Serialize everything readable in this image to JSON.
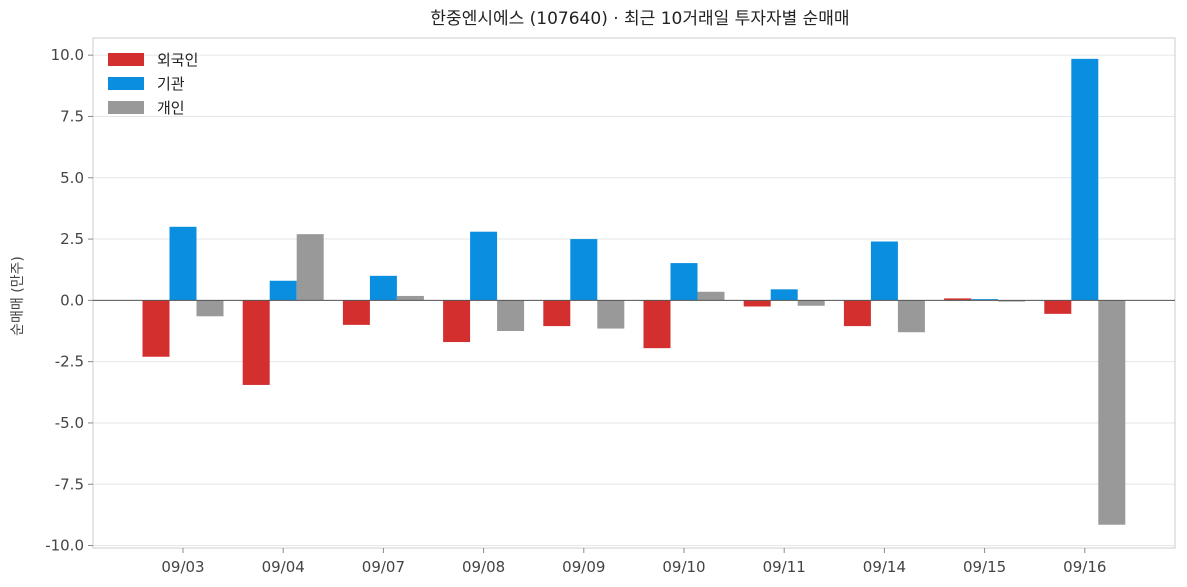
{
  "chart_data": {
    "type": "bar",
    "title": "한중엔시에스 (107640) · 최근 10거래일 투자자별 순매매",
    "xlabel": "",
    "ylabel": "순매매 (만주)",
    "categories": [
      "09/03",
      "09/04",
      "09/07",
      "09/08",
      "09/09",
      "09/10",
      "09/11",
      "09/14",
      "09/15",
      "09/16"
    ],
    "series": [
      {
        "name": "외국인",
        "color": "#d32f2f",
        "values": [
          -2.3,
          -3.45,
          -1.0,
          -1.7,
          -1.05,
          -1.95,
          -0.25,
          -1.05,
          0.08,
          -0.55
        ]
      },
      {
        "name": "기관",
        "color": "#0a8fe0",
        "values": [
          3.0,
          0.8,
          1.0,
          2.8,
          2.5,
          1.52,
          0.45,
          2.4,
          0.05,
          9.85
        ]
      },
      {
        "name": "개인",
        "color": "#999999",
        "values": [
          -0.65,
          2.7,
          0.18,
          -1.25,
          -1.15,
          0.35,
          -0.22,
          -1.3,
          -0.05,
          -9.15
        ]
      }
    ],
    "ylim": [
      -10.1,
      10.7
    ],
    "yticks": [
      "10.0",
      "7.5",
      "5.0",
      "2.5",
      "0.0",
      "-2.5",
      "-5.0",
      "-7.5",
      "-10.0"
    ],
    "ytick_values": [
      10,
      7.5,
      5,
      2.5,
      0,
      -2.5,
      -5,
      -7.5,
      -10
    ],
    "grid": true,
    "legend_position": "top-left"
  }
}
